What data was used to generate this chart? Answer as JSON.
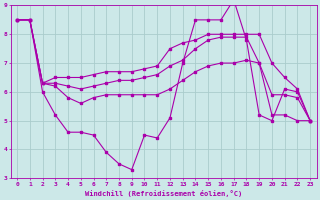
{
  "background_color": "#cce8e8",
  "grid_color": "#aacccc",
  "line_color": "#aa00aa",
  "xlabel": "Windchill (Refroidissement éolien,°C)",
  "xlim": [
    -0.5,
    23.5
  ],
  "ylim": [
    3,
    9
  ],
  "yticks": [
    3,
    4,
    5,
    6,
    7,
    8,
    9
  ],
  "xticks": [
    0,
    1,
    2,
    3,
    4,
    5,
    6,
    7,
    8,
    9,
    10,
    11,
    12,
    13,
    14,
    15,
    16,
    17,
    18,
    19,
    20,
    21,
    22,
    23
  ],
  "series": [
    {
      "x": [
        0,
        1,
        2,
        3,
        4,
        5,
        6,
        7,
        8,
        9,
        10,
        11,
        12,
        13,
        14,
        15,
        16,
        17,
        18,
        19,
        20,
        21,
        22,
        23
      ],
      "y": [
        8.5,
        8.5,
        6.0,
        5.2,
        4.6,
        4.6,
        4.5,
        3.9,
        3.5,
        3.3,
        4.5,
        4.4,
        5.1,
        7.0,
        8.5,
        8.5,
        8.5,
        9.2,
        7.8,
        5.2,
        5.0,
        6.1,
        6.0,
        5.0
      ]
    },
    {
      "x": [
        0,
        1,
        2,
        3,
        4,
        5,
        6,
        7,
        8,
        9,
        10,
        11,
        12,
        13,
        14,
        15,
        16,
        17,
        18,
        19,
        20,
        21,
        22,
        23
      ],
      "y": [
        8.5,
        8.5,
        6.3,
        6.5,
        6.5,
        6.5,
        6.6,
        6.7,
        6.7,
        6.7,
        6.8,
        6.9,
        7.5,
        7.7,
        7.8,
        8.0,
        8.0,
        8.0,
        8.0,
        8.0,
        7.0,
        6.5,
        6.1,
        5.0
      ]
    },
    {
      "x": [
        0,
        1,
        2,
        3,
        4,
        5,
        6,
        7,
        8,
        9,
        10,
        11,
        12,
        13,
        14,
        15,
        16,
        17,
        18,
        19,
        20,
        21,
        22,
        23
      ],
      "y": [
        8.5,
        8.5,
        6.3,
        6.3,
        6.2,
        6.1,
        6.2,
        6.3,
        6.4,
        6.4,
        6.5,
        6.6,
        6.9,
        7.1,
        7.5,
        7.8,
        7.9,
        7.9,
        7.9,
        7.0,
        5.2,
        5.2,
        5.0,
        5.0
      ]
    },
    {
      "x": [
        0,
        1,
        2,
        3,
        4,
        5,
        6,
        7,
        8,
        9,
        10,
        11,
        12,
        13,
        14,
        15,
        16,
        17,
        18,
        19,
        20,
        21,
        22,
        23
      ],
      "y": [
        8.5,
        8.5,
        6.3,
        6.2,
        5.8,
        5.6,
        5.8,
        5.9,
        5.9,
        5.9,
        5.9,
        5.9,
        6.1,
        6.4,
        6.7,
        6.9,
        7.0,
        7.0,
        7.1,
        7.0,
        5.9,
        5.9,
        5.8,
        5.0
      ]
    }
  ]
}
